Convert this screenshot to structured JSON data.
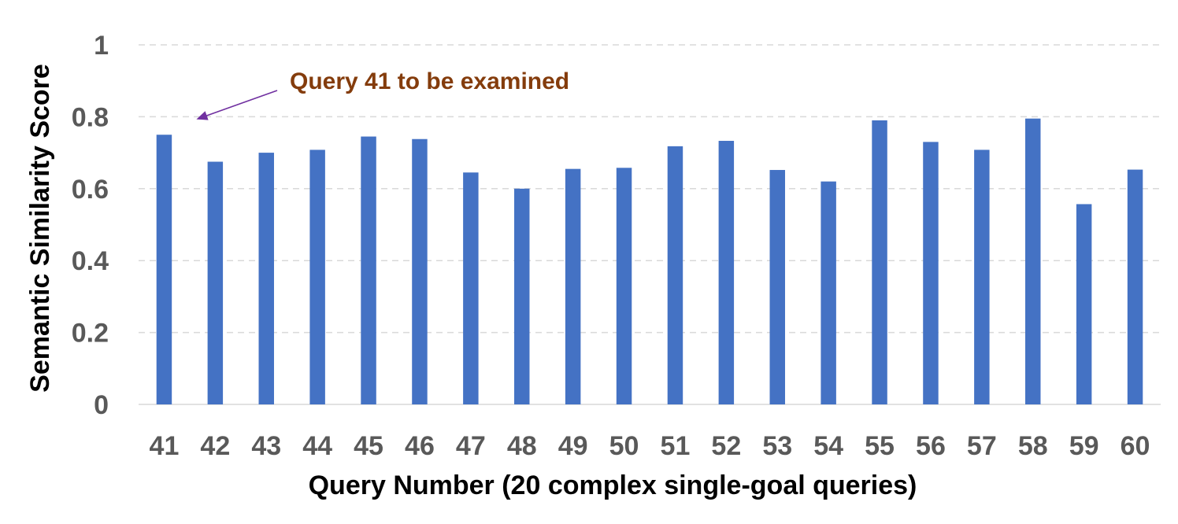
{
  "chart_data": {
    "type": "bar",
    "title": "",
    "xlabel": "Query Number (20 complex single-goal queries)",
    "ylabel": "Semantic Similarity Score",
    "ylim": [
      0,
      1
    ],
    "yticks": [
      {
        "value": 0,
        "label": "0"
      },
      {
        "value": 0.2,
        "label": "0.2"
      },
      {
        "value": 0.4,
        "label": "0.4"
      },
      {
        "value": 0.6,
        "label": "0.6"
      },
      {
        "value": 0.8,
        "label": "0.8"
      },
      {
        "value": 1,
        "label": "1"
      }
    ],
    "categories": [
      "41",
      "42",
      "43",
      "44",
      "45",
      "46",
      "47",
      "48",
      "49",
      "50",
      "51",
      "52",
      "53",
      "54",
      "55",
      "56",
      "57",
      "58",
      "59",
      "60"
    ],
    "series": [
      {
        "values": [
          0.75,
          0.675,
          0.7,
          0.708,
          0.745,
          0.738,
          0.645,
          0.6,
          0.655,
          0.658,
          0.718,
          0.733,
          0.652,
          0.62,
          0.79,
          0.73,
          0.708,
          0.795,
          0.557,
          0.653
        ]
      }
    ],
    "grid": true,
    "annotation": {
      "text": "Query 41 to be examined",
      "target_category": "41",
      "color": "#843C0C",
      "arrow_color": "#7030A0"
    },
    "colors": {
      "bar": "#4472C4",
      "grid": "#D9D9D9",
      "axis": "#D9D9D9"
    }
  }
}
